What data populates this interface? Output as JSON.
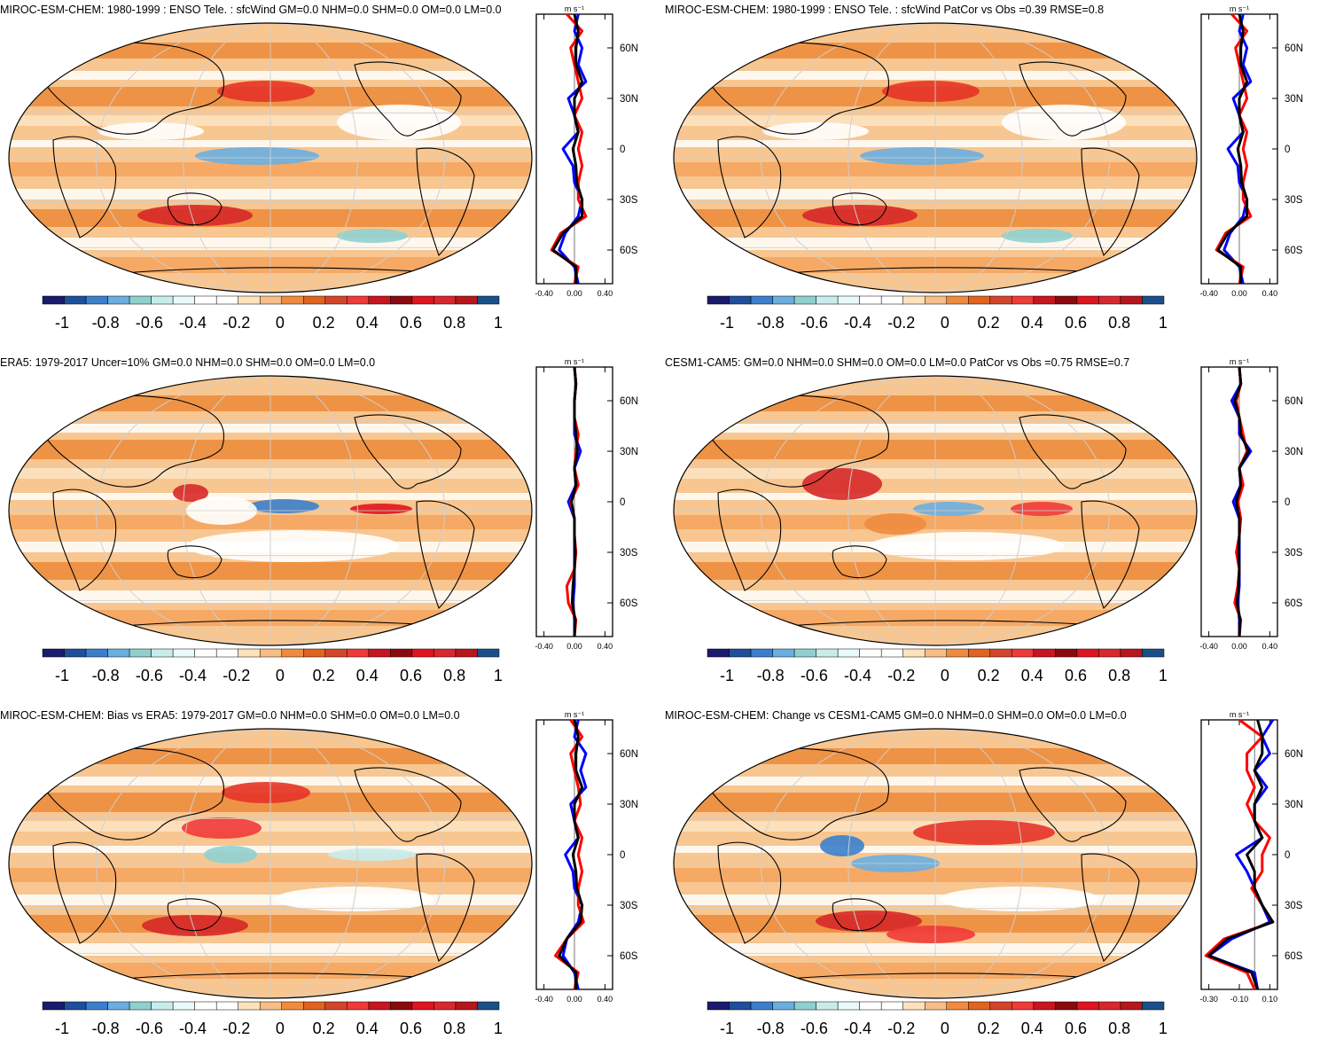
{
  "colorbar": {
    "colors": [
      "#1a1a6e",
      "#1f4f9c",
      "#3b7fcc",
      "#6aaee0",
      "#8fd0cf",
      "#c8ecec",
      "#eafafa",
      "#ffffff",
      "#ffffff",
      "#fde2bc",
      "#f8be87",
      "#ef8b3f",
      "#e0631f",
      "#d2452a",
      "#f03a3a",
      "#c81520",
      "#8b0a10",
      "#e0141e",
      "#d8282e",
      "#b8151c",
      "#1a4f8a"
    ],
    "tick_labels": [
      "-1",
      "-0.8",
      "-0.6",
      "-0.4",
      "-0.2",
      "0",
      "0.2",
      "0.4",
      "0.6",
      "0.8",
      "1"
    ]
  },
  "panels": [
    {
      "title": "MIROC-ESM-CHEM: 1980-1999 : ENSO Tele. : sfcWind GM=0.0 NHM=0.0 SHM=0.0 OM=0.0 LM=0.0",
      "units": "m s⁻¹",
      "lat_labels": [
        "60N",
        "30N",
        "0",
        "30S",
        "60S"
      ],
      "x_labels": [
        "-0.40",
        "0.00",
        "0.40"
      ],
      "lat_label_clip": false
    },
    {
      "title": "MIROC-ESM-CHEM: 1980-1999 : ENSO Tele. : sfcWind PatCor vs Obs =0.39 RMSE=0.8",
      "units": "m s⁻¹",
      "lat_labels": [
        "60N",
        "30N",
        "0",
        "30S",
        "60S"
      ],
      "x_labels": [
        "-0.40",
        "0.00",
        "0.40"
      ],
      "lat_label_clip": true
    },
    {
      "title": "ERA5: 1979-2017 Uncer=10% GM=0.0 NHM=0.0 SHM=0.0 OM=0.0 LM=0.0",
      "units": "m s⁻¹",
      "lat_labels": [
        "60N",
        "30N",
        "0",
        "30S",
        "60S"
      ],
      "x_labels": [
        "-0.40",
        "0.00",
        "0.40"
      ],
      "lat_label_clip": false
    },
    {
      "title": "CESM1-CAM5: GM=0.0 NHM=0.0 SHM=0.0 OM=0.0 LM=0.0 PatCor vs Obs =0.75 RMSE=0.7",
      "units": "m s⁻¹",
      "lat_labels": [
        "60N",
        "30N",
        "0",
        "30S",
        "60S"
      ],
      "x_labels": [
        "-0.40",
        "0.00",
        "0.40"
      ],
      "lat_label_clip": true
    },
    {
      "title": "MIROC-ESM-CHEM: Bias vs ERA5: 1979-2017 GM=0.0 NHM=0.0 SHM=0.0 OM=0.0 LM=0.0",
      "units": "m s⁻¹",
      "lat_labels": [
        "60N",
        "30N",
        "0",
        "30S",
        "60S"
      ],
      "x_labels": [
        "-0.40",
        "0.00",
        "0.40"
      ],
      "lat_label_clip": false
    },
    {
      "title": "MIROC-ESM-CHEM: Change vs CESM1-CAM5 GM=0.0 NHM=0.0 SHM=0.0 OM=0.0 LM=0.0",
      "units": "m s⁻¹",
      "lat_labels": [
        "60N",
        "30N",
        "0",
        "30S",
        "60S"
      ],
      "x_labels": [
        "-0.30",
        "-0.10",
        "0.10"
      ],
      "lat_label_clip": true
    }
  ],
  "chart_data": [
    {
      "type": "heatmap",
      "title": "MIROC-ESM-CHEM: 1980-1999 : ENSO Tele. : sfcWind GM=0.0 NHM=0.0 SHM=0.0 OM=0.0 LM=0.0",
      "colorbar_range": [
        -1,
        1
      ],
      "zonal_mean_profile": {
        "type": "line",
        "xlim": [
          -0.5,
          0.5
        ],
        "ylim": [
          -80,
          80
        ],
        "y_ticks": [
          60,
          30,
          0,
          -30,
          -60
        ],
        "series_colors": [
          "#0000ff",
          "#ff0000",
          "#000000"
        ],
        "lat": [
          -80,
          -70,
          -60,
          -50,
          -40,
          -30,
          -20,
          -10,
          0,
          10,
          20,
          30,
          40,
          50,
          60,
          70,
          80
        ],
        "series": [
          {
            "name": "blue",
            "values": [
              0.05,
              0.0,
              -0.2,
              -0.12,
              0.05,
              0.1,
              0.0,
              -0.02,
              -0.15,
              0.05,
              0.0,
              -0.08,
              0.15,
              0.05,
              0.1,
              0.0,
              0.05
            ]
          },
          {
            "name": "red",
            "values": [
              0.0,
              0.05,
              -0.3,
              -0.18,
              0.15,
              0.05,
              0.05,
              0.1,
              0.05,
              0.1,
              0.0,
              0.1,
              0.05,
              0.0,
              -0.05,
              0.1,
              -0.1
            ]
          },
          {
            "name": "black",
            "values": [
              0.02,
              0.02,
              -0.28,
              -0.15,
              0.1,
              0.1,
              0.03,
              0.02,
              -0.02,
              0.05,
              0.0,
              0.0,
              0.1,
              0.02,
              0.02,
              0.05,
              0.0
            ]
          }
        ]
      }
    },
    {
      "type": "heatmap",
      "title": "MIROC-ESM-CHEM: 1980-1999 : ENSO Tele. : sfcWind PatCor vs Obs =0.39 RMSE=0.8",
      "colorbar_range": [
        -1,
        1
      ],
      "zonal_mean_profile": {
        "type": "line",
        "xlim": [
          -0.5,
          0.5
        ],
        "ylim": [
          -80,
          80
        ],
        "y_ticks": [
          60,
          30,
          0,
          -30,
          -60
        ],
        "series_colors": [
          "#0000ff",
          "#ff0000",
          "#000000"
        ],
        "lat": [
          -80,
          -70,
          -60,
          -50,
          -40,
          -30,
          -20,
          -10,
          0,
          10,
          20,
          30,
          40,
          50,
          60,
          70,
          80
        ],
        "series": [
          {
            "name": "blue",
            "values": [
              0.05,
              0.0,
              -0.2,
              -0.12,
              0.05,
              0.1,
              0.0,
              -0.02,
              -0.15,
              0.05,
              0.0,
              -0.08,
              0.15,
              0.05,
              0.1,
              0.0,
              0.05
            ]
          },
          {
            "name": "red",
            "values": [
              0.0,
              0.05,
              -0.3,
              -0.18,
              0.15,
              0.05,
              0.05,
              0.1,
              0.05,
              0.1,
              0.0,
              0.1,
              0.05,
              0.0,
              -0.05,
              0.1,
              -0.1
            ]
          },
          {
            "name": "black",
            "values": [
              0.02,
              0.02,
              -0.28,
              -0.15,
              0.1,
              0.1,
              0.03,
              0.02,
              -0.02,
              0.05,
              0.0,
              0.0,
              0.1,
              0.02,
              0.02,
              0.05,
              0.0
            ]
          }
        ]
      }
    },
    {
      "type": "heatmap",
      "title": "ERA5: 1979-2017 Uncer=10% GM=0.0 NHM=0.0 SHM=0.0 OM=0.0 LM=0.0",
      "colorbar_range": [
        -1,
        1
      ],
      "zonal_mean_profile": {
        "type": "line",
        "xlim": [
          -0.5,
          0.5
        ],
        "ylim": [
          -80,
          80
        ],
        "y_ticks": [
          60,
          30,
          0,
          -30,
          -60
        ],
        "series_colors": [
          "#0000ff",
          "#ff0000",
          "#000000"
        ],
        "lat": [
          -80,
          -70,
          -60,
          -50,
          -40,
          -30,
          -20,
          -10,
          0,
          10,
          20,
          30,
          40,
          50,
          60,
          70,
          80
        ],
        "series": [
          {
            "name": "blue",
            "values": [
              0.0,
              0.0,
              -0.02,
              0.0,
              0.0,
              0.0,
              0.0,
              0.0,
              -0.08,
              0.02,
              0.0,
              0.08,
              0.0,
              0.0,
              0.0,
              0.02,
              0.0
            ]
          },
          {
            "name": "red",
            "values": [
              0.0,
              0.02,
              -0.08,
              -0.1,
              0.0,
              0.02,
              0.0,
              0.0,
              -0.05,
              0.05,
              0.0,
              0.02,
              0.05,
              0.0,
              0.0,
              0.02,
              0.0
            ]
          },
          {
            "name": "black",
            "values": [
              0.0,
              0.01,
              -0.03,
              -0.02,
              0.0,
              0.01,
              0.0,
              0.0,
              -0.04,
              0.02,
              0.0,
              0.04,
              0.02,
              0.0,
              0.0,
              0.02,
              0.0
            ]
          }
        ]
      }
    },
    {
      "type": "heatmap",
      "title": "CESM1-CAM5: GM=0.0 NHM=0.0 SHM=0.0 OM=0.0 LM=0.0 PatCor vs Obs =0.75 RMSE=0.7",
      "colorbar_range": [
        -1,
        1
      ],
      "zonal_mean_profile": {
        "type": "line",
        "xlim": [
          -0.5,
          0.5
        ],
        "ylim": [
          -80,
          80
        ],
        "y_ticks": [
          60,
          30,
          0,
          -30,
          -60
        ],
        "series_colors": [
          "#0000ff",
          "#ff0000",
          "#000000"
        ],
        "lat": [
          -80,
          -70,
          -60,
          -50,
          -40,
          -30,
          -20,
          -10,
          0,
          10,
          20,
          30,
          40,
          50,
          60,
          70,
          80
        ],
        "series": [
          {
            "name": "blue",
            "values": [
              0.0,
              0.0,
              -0.02,
              0.0,
              0.0,
              0.0,
              0.0,
              0.0,
              -0.08,
              0.02,
              0.0,
              0.15,
              0.0,
              0.0,
              -0.1,
              0.02,
              0.0
            ]
          },
          {
            "name": "red",
            "values": [
              0.0,
              0.02,
              -0.06,
              -0.02,
              0.0,
              -0.04,
              0.0,
              0.02,
              -0.02,
              0.05,
              0.0,
              0.1,
              0.05,
              0.0,
              -0.04,
              0.02,
              0.0
            ]
          },
          {
            "name": "black",
            "values": [
              0.0,
              0.01,
              -0.03,
              -0.01,
              0.0,
              -0.01,
              0.0,
              0.0,
              -0.04,
              0.02,
              0.0,
              0.12,
              0.02,
              0.0,
              -0.06,
              0.02,
              0.0
            ]
          }
        ]
      }
    },
    {
      "type": "heatmap",
      "title": "MIROC-ESM-CHEM: Bias vs ERA5: 1979-2017 GM=0.0 NHM=0.0 SHM=0.0 OM=0.0 LM=0.0",
      "colorbar_range": [
        -1,
        1
      ],
      "zonal_mean_profile": {
        "type": "line",
        "xlim": [
          -0.5,
          0.5
        ],
        "ylim": [
          -80,
          80
        ],
        "y_ticks": [
          60,
          30,
          0,
          -30,
          -60
        ],
        "series_colors": [
          "#0000ff",
          "#ff0000",
          "#000000"
        ],
        "lat": [
          -80,
          -70,
          -60,
          -50,
          -40,
          -30,
          -20,
          -10,
          0,
          10,
          20,
          30,
          40,
          50,
          60,
          70,
          80
        ],
        "series": [
          {
            "name": "blue",
            "values": [
              0.05,
              0.0,
              -0.15,
              -0.1,
              0.05,
              0.1,
              0.0,
              -0.02,
              -0.12,
              0.05,
              0.0,
              -0.05,
              0.15,
              0.08,
              0.15,
              0.0,
              0.05
            ]
          },
          {
            "name": "red",
            "values": [
              0.0,
              0.05,
              -0.25,
              -0.1,
              0.12,
              0.05,
              0.05,
              0.1,
              0.05,
              0.1,
              0.0,
              0.08,
              0.05,
              0.0,
              -0.05,
              0.1,
              -0.05
            ]
          },
          {
            "name": "black",
            "values": [
              0.02,
              0.02,
              -0.2,
              -0.1,
              0.08,
              0.1,
              0.03,
              0.02,
              -0.02,
              0.05,
              0.0,
              0.0,
              0.1,
              0.02,
              0.02,
              0.05,
              0.0
            ]
          }
        ]
      }
    },
    {
      "type": "heatmap",
      "title": "MIROC-ESM-CHEM: Change vs CESM1-CAM5 GM=0.0 NHM=0.0 SHM=0.0 OM=0.0 LM=0.0",
      "colorbar_range": [
        -1,
        1
      ],
      "zonal_mean_profile": {
        "type": "line",
        "xlim": [
          -0.35,
          0.15
        ],
        "ylim": [
          -80,
          80
        ],
        "y_ticks": [
          60,
          30,
          0,
          -30,
          -60
        ],
        "series_colors": [
          "#0000ff",
          "#ff0000",
          "#000000"
        ],
        "lat": [
          -80,
          -70,
          -60,
          -50,
          -40,
          -30,
          -20,
          -10,
          0,
          10,
          20,
          30,
          40,
          50,
          60,
          70,
          80
        ],
        "series": [
          {
            "name": "blue",
            "values": [
              0.02,
              0.0,
              -0.3,
              -0.15,
              0.1,
              0.05,
              0.0,
              -0.05,
              -0.12,
              0.05,
              0.0,
              0.0,
              0.08,
              0.0,
              0.1,
              0.05,
              0.12
            ]
          },
          {
            "name": "red",
            "values": [
              0.0,
              -0.05,
              -0.32,
              -0.2,
              0.12,
              0.05,
              -0.02,
              0.05,
              0.05,
              0.1,
              0.0,
              -0.05,
              0.0,
              -0.05,
              -0.05,
              0.05,
              -0.1
            ]
          },
          {
            "name": "black",
            "values": [
              0.02,
              -0.02,
              -0.3,
              -0.18,
              0.12,
              0.05,
              0.0,
              0.0,
              -0.05,
              0.05,
              0.0,
              0.0,
              0.05,
              0.0,
              0.05,
              0.05,
              0.02
            ]
          }
        ]
      }
    }
  ]
}
